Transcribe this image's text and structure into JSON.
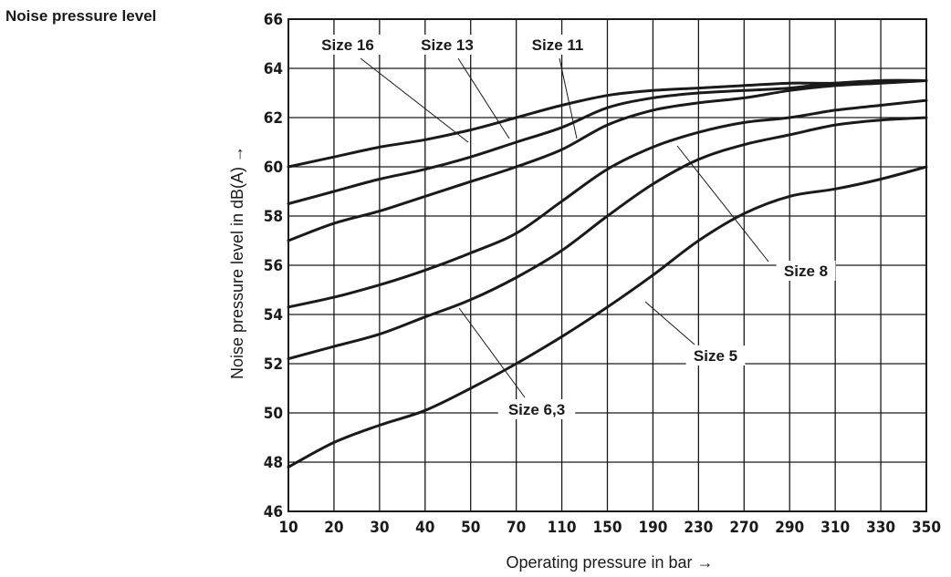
{
  "chart_data": {
    "type": "line",
    "title": "Noise pressure level",
    "xlabel": "Operating pressure in bar →",
    "ylabel": "Noise pressure level in dB(A) →",
    "categories": [
      "10",
      "20",
      "30",
      "40",
      "50",
      "70",
      "110",
      "150",
      "190",
      "230",
      "270",
      "290",
      "310",
      "330",
      "350"
    ],
    "ylim": [
      46,
      66
    ],
    "yticks": [
      46,
      48,
      50,
      52,
      54,
      56,
      58,
      60,
      62,
      64,
      66
    ],
    "grid": true,
    "colors": {
      "line": "#1a1a1a"
    },
    "series": [
      {
        "name": "Size 16",
        "values": [
          60.0,
          60.4,
          60.8,
          61.1,
          61.5,
          62.0,
          62.5,
          62.9,
          63.1,
          63.2,
          63.3,
          63.4,
          63.4,
          63.5,
          63.5
        ]
      },
      {
        "name": "Size 13",
        "values": [
          58.5,
          59.0,
          59.5,
          59.9,
          60.4,
          61.0,
          61.6,
          62.4,
          62.8,
          63.0,
          63.1,
          63.2,
          63.4,
          63.5,
          63.5
        ]
      },
      {
        "name": "Size 11",
        "values": [
          57.0,
          57.7,
          58.2,
          58.8,
          59.4,
          60.0,
          60.7,
          61.7,
          62.3,
          62.6,
          62.8,
          63.1,
          63.3,
          63.4,
          63.5
        ]
      },
      {
        "name": "Size 8",
        "values": [
          54.3,
          54.7,
          55.2,
          55.8,
          56.5,
          57.3,
          58.6,
          59.9,
          60.8,
          61.4,
          61.8,
          62.0,
          62.3,
          62.5,
          62.7
        ]
      },
      {
        "name": "Size 6,3",
        "values": [
          52.2,
          52.7,
          53.2,
          53.9,
          54.6,
          55.5,
          56.6,
          58.0,
          59.3,
          60.3,
          60.9,
          61.3,
          61.7,
          61.9,
          62.0
        ]
      },
      {
        "name": "Size 5",
        "values": [
          47.8,
          48.8,
          49.5,
          50.1,
          51.0,
          52.0,
          53.1,
          54.3,
          55.6,
          57.0,
          58.1,
          58.8,
          59.1,
          59.5,
          60.0
        ]
      }
    ]
  }
}
